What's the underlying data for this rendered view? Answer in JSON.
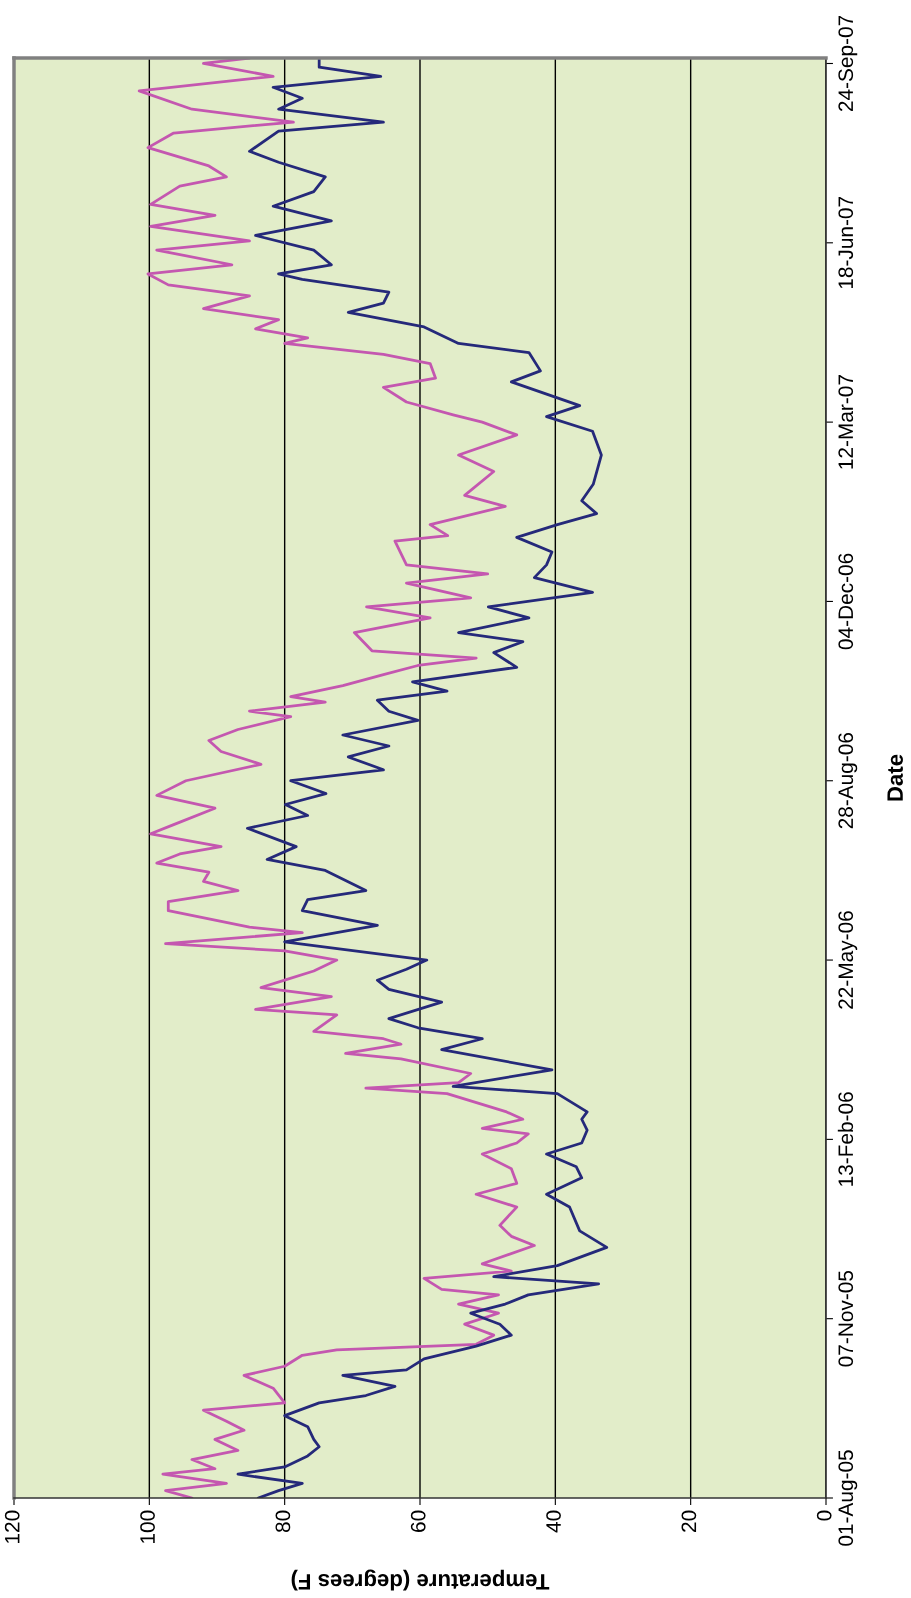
{
  "chart_data": {
    "type": "line",
    "orientation": "horizontal",
    "xlabel": "Temperature (degrees F)",
    "ylabel": "Date",
    "ylim": [
      "2005-08-01",
      "2007-09-27"
    ],
    "yticks": [
      {
        "value": "2005-08-01",
        "label": "01-Aug-05"
      },
      {
        "value": "2005-11-07",
        "label": "07-Nov-05"
      },
      {
        "value": "2006-02-13",
        "label": "13-Feb-06"
      },
      {
        "value": "2006-05-22",
        "label": "22-May-06"
      },
      {
        "value": "2006-08-28",
        "label": "28-Aug-06"
      },
      {
        "value": "2006-12-04",
        "label": "04-Dec-06"
      },
      {
        "value": "2007-03-12",
        "label": "12-Mar-07"
      },
      {
        "value": "2007-06-18",
        "label": "18-Jun-07"
      },
      {
        "value": "2007-09-24",
        "label": "24-Sep-07"
      }
    ],
    "xlim": [
      120,
      0
    ],
    "xticks": [
      120,
      100,
      80,
      60,
      40,
      20,
      0
    ],
    "grid": "x",
    "series": [
      {
        "color": "#c457b0",
        "x": [
          "2005-08-01",
          "2005-08-05",
          "2005-08-09",
          "2005-08-14",
          "2005-08-17",
          "2005-08-22",
          "2005-08-27",
          "2005-09-02",
          "2005-09-07",
          "2005-09-12",
          "2005-09-18",
          "2005-09-22",
          "2005-09-30",
          "2005-10-07",
          "2005-10-12",
          "2005-10-18",
          "2005-10-21",
          "2005-10-24",
          "2005-10-29",
          "2005-11-04",
          "2005-11-10",
          "2005-11-15",
          "2005-11-20",
          "2005-11-23",
          "2005-11-29",
          "2005-12-03",
          "2005-12-07",
          "2005-12-17",
          "2005-12-22",
          "2005-12-28",
          "2006-01-07",
          "2006-01-14",
          "2006-01-20",
          "2006-01-28",
          "2006-02-05",
          "2006-02-11",
          "2006-02-16",
          "2006-02-19",
          "2006-02-24",
          "2006-02-28",
          "2006-03-10",
          "2006-03-13",
          "2006-03-16",
          "2006-03-21",
          "2006-03-29",
          "2006-04-01",
          "2006-04-06",
          "2006-04-09",
          "2006-04-13",
          "2006-04-22",
          "2006-04-25",
          "2006-05-02",
          "2006-05-07",
          "2006-05-11",
          "2006-05-16",
          "2006-05-22",
          "2006-05-27",
          "2006-05-31",
          "2006-06-06",
          "2006-06-09",
          "2006-06-18",
          "2006-06-23",
          "2006-06-29",
          "2006-07-04",
          "2006-07-09",
          "2006-07-14",
          "2006-07-19",
          "2006-07-23",
          "2006-07-30",
          "2006-08-04",
          "2006-08-13",
          "2006-08-20",
          "2006-08-28",
          "2006-09-06",
          "2006-09-13",
          "2006-09-19",
          "2006-09-25",
          "2006-10-02",
          "2006-10-05",
          "2006-10-10",
          "2006-10-13",
          "2006-10-19",
          "2006-10-25",
          "2006-10-30",
          "2006-11-03",
          "2006-11-07",
          "2006-11-17",
          "2006-11-25",
          "2006-12-01",
          "2006-12-06",
          "2006-12-14",
          "2006-12-19",
          "2006-12-24",
          "2007-01-06",
          "2007-01-09",
          "2007-01-15",
          "2007-01-25",
          "2007-01-31",
          "2007-02-13",
          "2007-02-22",
          "2007-03-05",
          "2007-03-12",
          "2007-03-16",
          "2007-03-23",
          "2007-03-31",
          "2007-04-05",
          "2007-04-13",
          "2007-04-18",
          "2007-04-24",
          "2007-04-27",
          "2007-05-02",
          "2007-05-07",
          "2007-05-13",
          "2007-05-20",
          "2007-05-26",
          "2007-06-01",
          "2007-06-06",
          "2007-06-14",
          "2007-06-19",
          "2007-06-27",
          "2007-07-03",
          "2007-07-09",
          "2007-07-19",
          "2007-07-24",
          "2007-07-30",
          "2007-08-09",
          "2007-08-17",
          "2007-08-23",
          "2007-08-30",
          "2007-09-09",
          "2007-09-17",
          "2007-09-24",
          "2007-09-27"
        ],
        "values": [
          93.7,
          97.6,
          88.6,
          98.0,
          90.3,
          93.7,
          86.9,
          90.3,
          86.0,
          88.6,
          92.0,
          80.0,
          81.7,
          86.0,
          80.0,
          77.4,
          72.3,
          51.7,
          49.1,
          53.4,
          48.4,
          54.3,
          48.4,
          56.8,
          59.4,
          46.5,
          50.8,
          43.1,
          46.5,
          48.2,
          45.7,
          51.7,
          45.7,
          46.5,
          50.8,
          45.7,
          44.0,
          50.8,
          44.8,
          47.2,
          56.0,
          68.0,
          54.3,
          52.5,
          62.8,
          71.0,
          62.8,
          65.4,
          75.7,
          72.3,
          84.3,
          73.1,
          83.5,
          80.0,
          75.7,
          72.3,
          80.0,
          97.6,
          77.4,
          85.2,
          97.2,
          97.2,
          86.9,
          92.0,
          91.2,
          98.9,
          95.5,
          89.4,
          99.8,
          96.4,
          90.3,
          98.9,
          94.6,
          83.5,
          89.4,
          91.2,
          86.9,
          79.1,
          85.2,
          74.0,
          79.1,
          71.4,
          65.4,
          60.3,
          51.7,
          67.1,
          69.7,
          58.5,
          67.9,
          52.5,
          62.0,
          50.0,
          62.0,
          63.7,
          55.9,
          58.5,
          47.4,
          53.4,
          49.1,
          54.3,
          45.7,
          50.8,
          55.1,
          62.0,
          65.4,
          57.7,
          58.5,
          65.4,
          80.0,
          76.6,
          84.3,
          80.9,
          92.0,
          85.2,
          97.2,
          100.2,
          87.8,
          98.9,
          85.2,
          99.8,
          90.3,
          99.8,
          95.5,
          88.6,
          91.2,
          100.2,
          96.4,
          78.7,
          93.7,
          101.5,
          81.7,
          92.0,
          85.2
        ]
      },
      {
        "color": "#25297a",
        "x": [
          "2005-08-01",
          "2005-08-05",
          "2005-08-09",
          "2005-08-14",
          "2005-08-18",
          "2005-08-24",
          "2005-08-29",
          "2005-09-02",
          "2005-09-09",
          "2005-09-15",
          "2005-09-22",
          "2005-09-26",
          "2005-10-01",
          "2005-10-07",
          "2005-10-10",
          "2005-10-16",
          "2005-10-23",
          "2005-10-29",
          "2005-11-04",
          "2005-11-10",
          "2005-11-15",
          "2005-11-20",
          "2005-11-26",
          "2005-11-30",
          "2005-12-06",
          "2005-12-16",
          "2005-12-25",
          "2006-01-07",
          "2006-01-14",
          "2006-01-23",
          "2006-01-29",
          "2006-02-05",
          "2006-02-11",
          "2006-02-18",
          "2006-02-24",
          "2006-02-28",
          "2006-03-10",
          "2006-03-14",
          "2006-03-23",
          "2006-04-03",
          "2006-04-09",
          "2006-04-15",
          "2006-04-20",
          "2006-04-29",
          "2006-05-06",
          "2006-05-11",
          "2006-05-17",
          "2006-05-22",
          "2006-06-01",
          "2006-06-10",
          "2006-06-18",
          "2006-06-24",
          "2006-06-29",
          "2006-07-10",
          "2006-07-16",
          "2006-07-23",
          "2006-08-02",
          "2006-08-09",
          "2006-08-15",
          "2006-08-21",
          "2006-08-28",
          "2006-09-03",
          "2006-09-10",
          "2006-09-16",
          "2006-09-22",
          "2006-09-30",
          "2006-10-05",
          "2006-10-11",
          "2006-10-16",
          "2006-10-21",
          "2006-10-29",
          "2006-11-06",
          "2006-11-12",
          "2006-11-17",
          "2006-11-25",
          "2006-12-01",
          "2006-12-09",
          "2006-12-17",
          "2006-12-24",
          "2006-12-31",
          "2007-01-08",
          "2007-01-15",
          "2007-01-21",
          "2007-01-28",
          "2007-02-06",
          "2007-02-22",
          "2007-03-07",
          "2007-03-15",
          "2007-03-21",
          "2007-04-03",
          "2007-04-09",
          "2007-04-19",
          "2007-04-24",
          "2007-05-03",
          "2007-05-11",
          "2007-05-16",
          "2007-05-22",
          "2007-05-29",
          "2007-06-01",
          "2007-06-06",
          "2007-06-14",
          "2007-06-22",
          "2007-06-30",
          "2007-07-08",
          "2007-07-16",
          "2007-07-24",
          "2007-08-01",
          "2007-08-07",
          "2007-08-18",
          "2007-08-23",
          "2007-08-30",
          "2007-09-05",
          "2007-09-11",
          "2007-09-17",
          "2007-09-22",
          "2007-09-27"
        ],
        "values": [
          83.9,
          80.9,
          77.4,
          86.9,
          80.0,
          76.6,
          74.9,
          75.7,
          76.6,
          80.0,
          74.9,
          68.0,
          63.7,
          71.4,
          62.0,
          59.4,
          51.7,
          46.5,
          48.2,
          52.5,
          47.4,
          44.0,
          33.6,
          49.1,
          39.7,
          32.4,
          36.4,
          37.9,
          41.3,
          36.1,
          36.9,
          41.3,
          36.1,
          35.3,
          36.1,
          35.3,
          39.7,
          55.1,
          40.5,
          56.8,
          50.8,
          60.3,
          64.6,
          56.8,
          64.6,
          66.3,
          62.0,
          59.0,
          80.0,
          66.3,
          77.4,
          76.6,
          68.0,
          74.0,
          82.6,
          78.3,
          85.5,
          76.6,
          79.9,
          73.9,
          79.1,
          65.4,
          70.6,
          64.6,
          71.4,
          60.3,
          64.6,
          66.3,
          56.0,
          61.1,
          45.7,
          49.1,
          44.8,
          54.3,
          43.9,
          49.9,
          34.5,
          43.1,
          41.3,
          40.5,
          45.7,
          39.7,
          33.9,
          36.1,
          34.4,
          33.2,
          34.5,
          41.3,
          36.4,
          46.5,
          42.2,
          43.9,
          54.3,
          59.4,
          70.6,
          65.4,
          64.6,
          77.4,
          80.9,
          73.1,
          75.7,
          84.3,
          73.1,
          81.7,
          75.7,
          74.0,
          80.9,
          85.2,
          80.9,
          65.4,
          80.9,
          77.4,
          81.7,
          65.8,
          74.9,
          74.9
        ]
      }
    ]
  }
}
